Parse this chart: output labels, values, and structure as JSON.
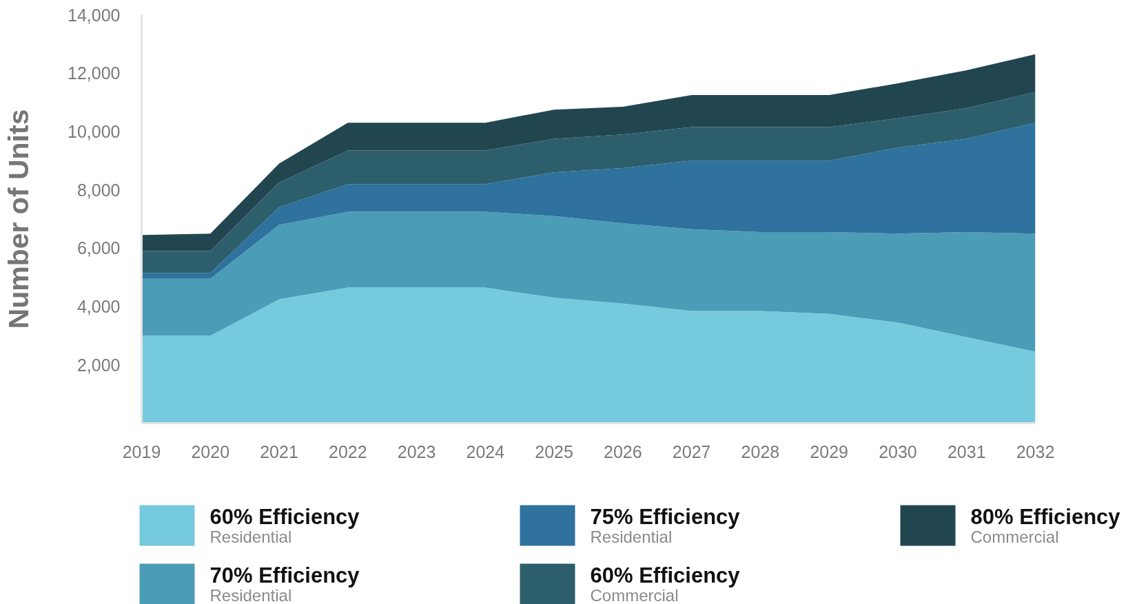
{
  "chart_data": {
    "type": "area",
    "stacked": true,
    "ylabel": "Number of Units",
    "categories": [
      "2019",
      "2020",
      "2021",
      "2022",
      "2023",
      "2024",
      "2025",
      "2026",
      "2027",
      "2028",
      "2029",
      "2030",
      "2031",
      "2032"
    ],
    "series": [
      {
        "name": "60% Efficiency\nResidential",
        "color": "#76cadd",
        "values": [
          3000,
          3000,
          4250,
          4650,
          4650,
          4650,
          4300,
          4100,
          3850,
          3850,
          3750,
          3450,
          2950,
          2450
        ]
      },
      {
        "name": "70% Efficiency\nResidential",
        "color": "#4a9cb7",
        "values": [
          1950,
          1950,
          2550,
          2600,
          2600,
          2600,
          2800,
          2750,
          2800,
          2700,
          2800,
          3050,
          3600,
          4050
        ]
      },
      {
        "name": "75% Efficiency\nResidential",
        "color": "#2e729d",
        "values": [
          200,
          200,
          600,
          950,
          950,
          950,
          1500,
          1900,
          2350,
          2450,
          2450,
          2950,
          3200,
          3800
        ]
      },
      {
        "name": "60% Efficiency\nCommercial",
        "color": "#2d5e6c",
        "values": [
          750,
          750,
          850,
          1150,
          1150,
          1150,
          1150,
          1150,
          1150,
          1150,
          1150,
          1000,
          1050,
          1050
        ]
      },
      {
        "name": "80% Efficiency\nCommercial",
        "color": "#224650",
        "values": [
          550,
          600,
          650,
          950,
          950,
          950,
          1000,
          950,
          1100,
          1100,
          1100,
          1200,
          1300,
          1300
        ]
      }
    ],
    "ylim": [
      0,
      14000
    ],
    "yticks": [
      {
        "value": 2000,
        "label": "2,000"
      },
      {
        "value": 4000,
        "label": "4,000"
      },
      {
        "value": 6000,
        "label": "6,000"
      },
      {
        "value": 8000,
        "label": "8,000"
      },
      {
        "value": 10000,
        "label": "10,000"
      },
      {
        "value": 12000,
        "label": "12,000"
      },
      {
        "value": 14000,
        "label": "14,000"
      }
    ],
    "legend": "bottom"
  }
}
